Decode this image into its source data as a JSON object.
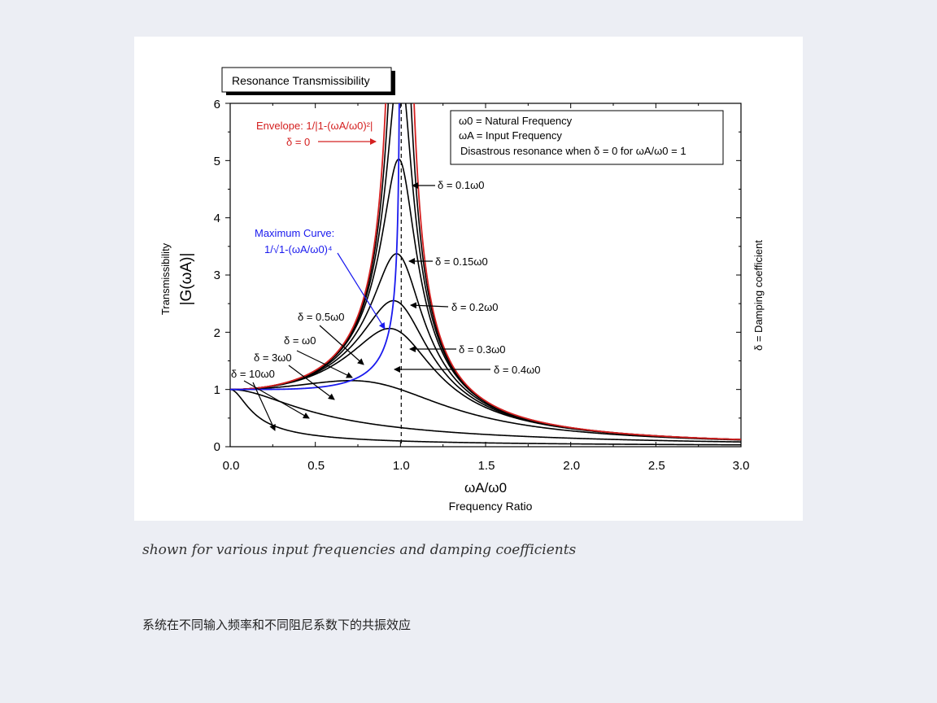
{
  "captions": {
    "english": "shown for various input frequencies and damping coefficients",
    "chinese": "系统在不同输入频率和不同阻尼系数下的共振效应"
  },
  "chart_data": {
    "type": "line",
    "title": "Resonance Transmissibility",
    "xlabel_symbol": "ωA/ω0",
    "xlabel": "Frequency Ratio",
    "ylabel_title": "Transmissibility",
    "ylabel_symbol": "|G(ωA)|",
    "right_label": "δ = Damping coefficient",
    "xlim": [
      0,
      3.0
    ],
    "ylim": [
      0,
      6
    ],
    "x_ticks": [
      "0.0",
      "0.5",
      "1.0",
      "1.5",
      "2.0",
      "2.5",
      "3.0"
    ],
    "y_ticks": [
      "0",
      "1",
      "2",
      "3",
      "4",
      "5",
      "6"
    ],
    "vertical_reference_line_x": 1.0,
    "legend_box": {
      "line1": "ω0 = Natural Frequency",
      "line2": "ωA = Input Frequency",
      "line3": "Disastrous resonance when δ = 0 for ωA/ω0 = 1"
    },
    "envelope": {
      "label": "Envelope: 1/|1-(ωA/ω0)²|",
      "sublabel": "δ = 0",
      "color": "#d42020"
    },
    "maximum_curve": {
      "label": "Maximum Curve:",
      "formula": "1/√1-(ωA/ω0)⁴",
      "color": "#1a1aee"
    },
    "series": [
      {
        "name": "δ = 0.1ω0",
        "delta": 0.1
      },
      {
        "name": "δ = 0.15ω0",
        "delta": 0.15
      },
      {
        "name": "δ = 0.2ω0",
        "delta": 0.2
      },
      {
        "name": "δ = 0.3ω0",
        "delta": 0.3
      },
      {
        "name": "δ = 0.4ω0",
        "delta": 0.4
      },
      {
        "name": "δ = 0.5ω0",
        "delta": 0.5
      },
      {
        "name": "δ = ω0",
        "delta": 1
      },
      {
        "name": "δ = 3ω0",
        "delta": 3
      },
      {
        "name": "δ = 10ω0",
        "delta": 10
      }
    ],
    "series_color": "#000000"
  }
}
